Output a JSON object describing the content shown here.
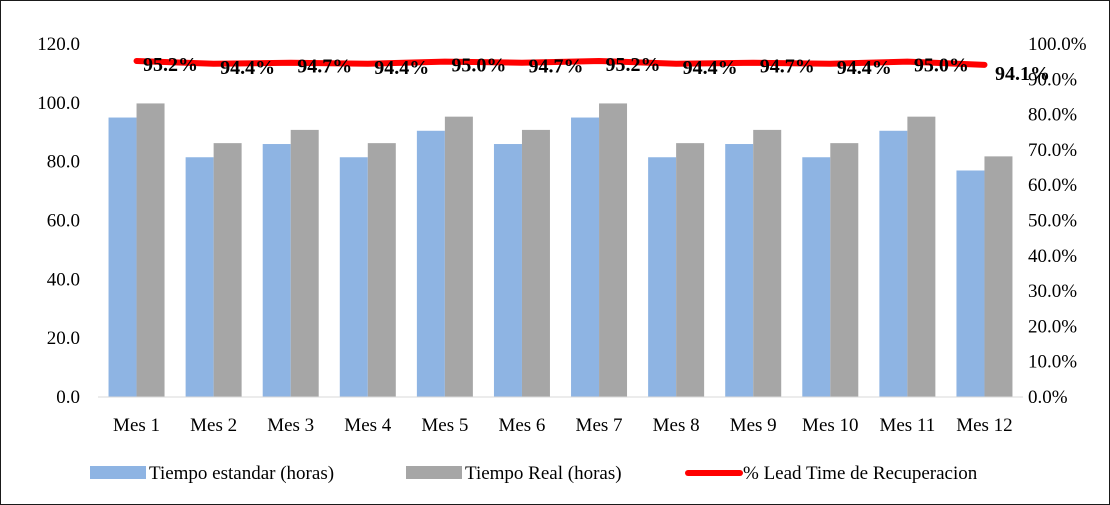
{
  "chart_data": {
    "type": "bar",
    "categories": [
      "Mes 1",
      "Mes 2",
      "Mes 3",
      "Mes 4",
      "Mes 5",
      "Mes 6",
      "Mes 7",
      "Mes 8",
      "Mes 9",
      "Mes 10",
      "Mes 11",
      "Mes 12"
    ],
    "series": [
      {
        "name": "Tiempo estandar (horas)",
        "type": "bar",
        "axis": "left",
        "color": "#8eb4e3",
        "values": [
          95,
          81.5,
          86,
          81.5,
          90.5,
          86,
          95,
          81.5,
          86,
          81.5,
          90.5,
          77
        ]
      },
      {
        "name": "Tiempo Real (horas)",
        "type": "bar",
        "axis": "left",
        "color": "#a6a6a6",
        "values": [
          99.8,
          86.3,
          90.8,
          86.3,
          95.3,
          90.8,
          99.8,
          86.3,
          90.8,
          86.3,
          95.3,
          81.8
        ]
      },
      {
        "name": "% Lead Time de Recuperacion",
        "type": "line",
        "axis": "right",
        "color": "#ff0000",
        "values": [
          0.952,
          0.944,
          0.947,
          0.944,
          0.95,
          0.947,
          0.952,
          0.944,
          0.947,
          0.944,
          0.95,
          0.941
        ],
        "labels": [
          "95.2%",
          "94.4%",
          "94.7%",
          "94.4%",
          "95.0%",
          "94.7%",
          "95.2%",
          "94.4%",
          "94.7%",
          "94.4%",
          "95.0%",
          "94.1%"
        ]
      }
    ],
    "y_left": {
      "range": [
        0,
        120
      ],
      "ticks": [
        0,
        20,
        40,
        60,
        80,
        100,
        120
      ],
      "tick_labels": [
        "0.0",
        "20.0",
        "40.0",
        "60.0",
        "80.0",
        "100.0",
        "120.0"
      ]
    },
    "y_right": {
      "range": [
        0,
        1
      ],
      "ticks": [
        0,
        0.1,
        0.2,
        0.3,
        0.4,
        0.5,
        0.6,
        0.7,
        0.8,
        0.9,
        1.0
      ],
      "tick_labels": [
        "0.0%",
        "10.0%",
        "20.0%",
        "30.0%",
        "40.0%",
        "50.0%",
        "60.0%",
        "70.0%",
        "80.0%",
        "90.0%",
        "100.0%"
      ]
    },
    "grid": false,
    "legend_position": "bottom"
  }
}
